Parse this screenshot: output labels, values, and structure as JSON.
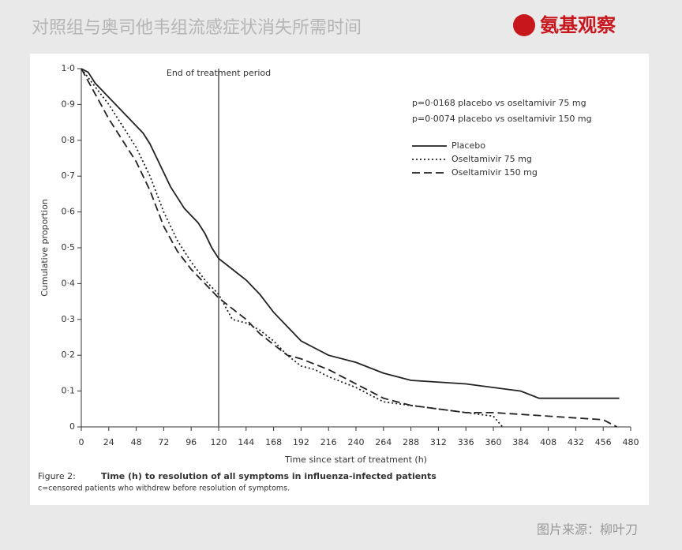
{
  "header": {
    "title": "对照组与奥司他韦组流感症状消失所需时间",
    "logo": "氨基观察"
  },
  "source": "图片来源：柳叶刀",
  "chart_data": {
    "type": "line",
    "title": "End of treatment period",
    "treatment_end": 120,
    "annotations": [
      "p=0·0168 placebo vs oseltamivir 75 mg",
      "p=0·0074 placebo vs oseltamivir 150 mg"
    ],
    "x_label": "Time since start of treatment (h)",
    "y_label": "Cumulative proportion",
    "caption_label": "Figure 2:",
    "caption": "Time (h) to resolution of all symptoms in influenza-infected patients",
    "note": "c=censored patients who withdrew before resolution of symptoms.",
    "xlim": [
      0,
      480
    ],
    "xticks": [
      0,
      24,
      48,
      72,
      96,
      120,
      144,
      168,
      192,
      216,
      240,
      264,
      288,
      312,
      336,
      360,
      384,
      408,
      432,
      456,
      480
    ],
    "ylim": [
      0,
      1
    ],
    "yticks": [
      0,
      {
        "value": 0.1,
        "label": "0·1"
      },
      {
        "value": 0.2,
        "label": "0·2"
      },
      {
        "value": 0.3,
        "label": "0·3"
      },
      {
        "value": 0.4,
        "label": "0·4"
      },
      {
        "value": 0.5,
        "label": "0·5"
      },
      {
        "value": 0.6,
        "label": "0·6"
      },
      {
        "value": 0.7,
        "label": "0·7"
      },
      {
        "value": 0.8,
        "label": "0·8"
      },
      {
        "value": 0.9,
        "label": "0·9"
      },
      {
        "value": 1,
        "label": "1·0"
      }
    ],
    "series": [
      {
        "name": "Placebo",
        "color": "#222222",
        "dash": "solid",
        "x": [
          0,
          6,
          12,
          18,
          24,
          30,
          36,
          42,
          48,
          54,
          60,
          66,
          72,
          78,
          84,
          90,
          96,
          102,
          108,
          114,
          120,
          132,
          144,
          156,
          168,
          180,
          192,
          204,
          216,
          240,
          264,
          288,
          336,
          384,
          400,
          470
        ],
        "values": [
          1,
          0.99,
          0.96,
          0.94,
          0.92,
          0.9,
          0.88,
          0.86,
          0.84,
          0.82,
          0.79,
          0.75,
          0.71,
          0.67,
          0.64,
          0.61,
          0.59,
          0.57,
          0.54,
          0.5,
          0.47,
          0.44,
          0.41,
          0.37,
          0.32,
          0.28,
          0.24,
          0.22,
          0.2,
          0.18,
          0.15,
          0.13,
          0.12,
          0.1,
          0.08,
          0.08
        ]
      },
      {
        "name": "Oseltamivir 75 mg",
        "color": "#222222",
        "dash": "dotted",
        "x": [
          0,
          12,
          24,
          36,
          48,
          60,
          72,
          84,
          96,
          108,
          120,
          132,
          144,
          156,
          168,
          180,
          192,
          204,
          216,
          240,
          264,
          288,
          312,
          336,
          360,
          368
        ],
        "values": [
          1,
          0.95,
          0.9,
          0.84,
          0.78,
          0.7,
          0.6,
          0.52,
          0.46,
          0.41,
          0.37,
          0.3,
          0.29,
          0.27,
          0.24,
          0.2,
          0.17,
          0.16,
          0.14,
          0.11,
          0.07,
          0.06,
          0.05,
          0.04,
          0.03,
          0
        ]
      },
      {
        "name": "Oseltamivir 150 mg",
        "color": "#222222",
        "dash": "dashed",
        "x": [
          0,
          12,
          24,
          36,
          48,
          60,
          72,
          84,
          96,
          108,
          120,
          132,
          144,
          156,
          168,
          180,
          192,
          216,
          240,
          264,
          288,
          312,
          336,
          360,
          408,
          456,
          468
        ],
        "values": [
          1,
          0.93,
          0.86,
          0.8,
          0.74,
          0.66,
          0.56,
          0.49,
          0.44,
          0.4,
          0.36,
          0.33,
          0.3,
          0.26,
          0.23,
          0.2,
          0.19,
          0.16,
          0.12,
          0.08,
          0.06,
          0.05,
          0.04,
          0.04,
          0.03,
          0.02,
          0
        ]
      }
    ]
  }
}
